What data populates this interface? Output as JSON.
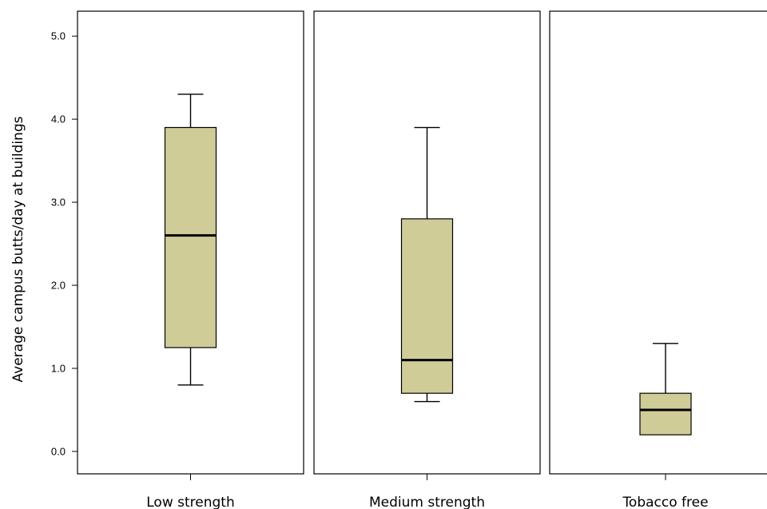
{
  "chart_data": {
    "type": "box",
    "ylabel": "Average campus butts/day at buildings",
    "ylim": [
      -0.27,
      5.3
    ],
    "yticks": [
      0.0,
      1.0,
      2.0,
      3.0,
      4.0,
      5.0
    ],
    "ytick_labels": [
      "0.0",
      "1.0",
      "2.0",
      "3.0",
      "4.0",
      "5.0"
    ],
    "box_color": "#cfcc98",
    "categories": [
      "Low strength",
      "Medium strength",
      "Tobacco free"
    ],
    "boxes": [
      {
        "category": "Low strength",
        "whisker_low": 0.8,
        "q1": 1.25,
        "median": 2.6,
        "q3": 3.9,
        "whisker_high": 4.3
      },
      {
        "category": "Medium strength",
        "whisker_low": 0.6,
        "q1": 0.7,
        "median": 1.1,
        "q3": 2.8,
        "whisker_high": 3.9
      },
      {
        "category": "Tobacco free",
        "whisker_low": 0.2,
        "q1": 0.2,
        "median": 0.5,
        "q3": 0.7,
        "whisker_high": 1.3
      }
    ]
  }
}
